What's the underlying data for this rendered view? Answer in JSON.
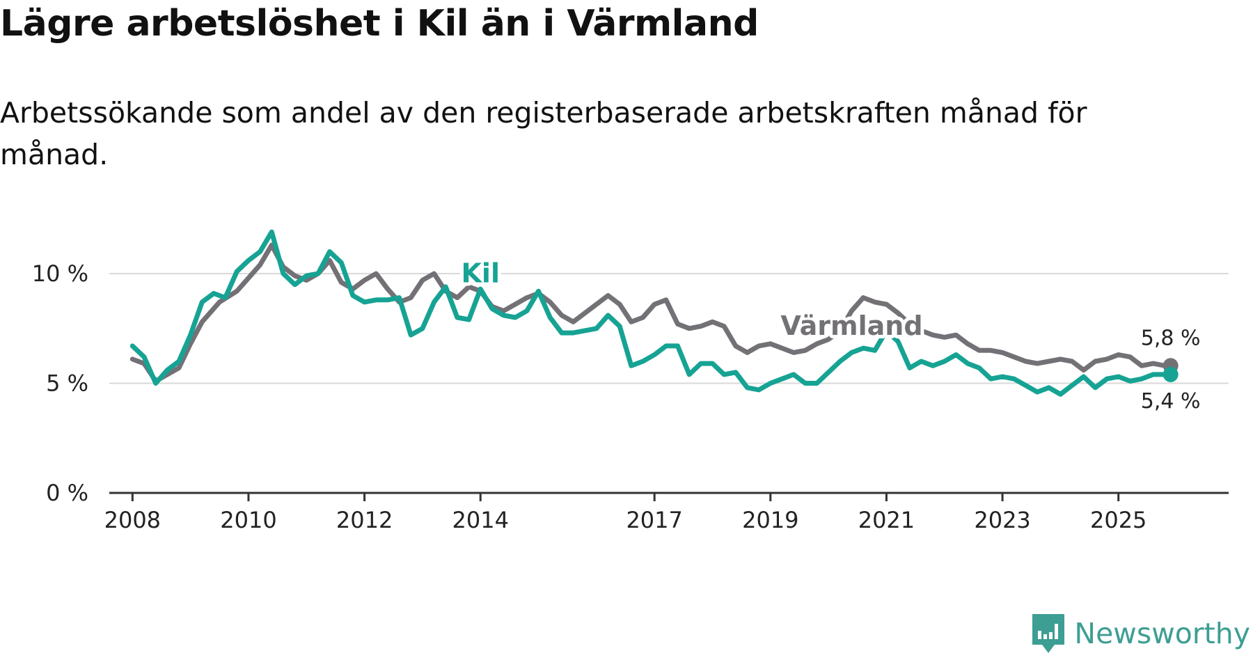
{
  "header": {
    "title": "Lägre arbetslöshet i Kil än i Värmland",
    "subtitle": "Arbetssökande som andel av den registerbaserade arbetskraften månad för månad."
  },
  "brand": {
    "name": "Newsworthy",
    "icon": "newsworthy-logo-icon"
  },
  "colors": {
    "kil": "#16a394",
    "varmland": "#737176",
    "grid": "#d9d9d9",
    "axis": "#333333",
    "brand": "#3d9e93"
  },
  "chart_data": {
    "type": "line",
    "title": "Lägre arbetslöshet i Kil än i Värmland",
    "xlabel": "",
    "ylabel": "",
    "xlim": [
      2007.6,
      2026.9
    ],
    "ylim": [
      0,
      12
    ],
    "yticks": [
      0,
      5,
      10
    ],
    "ytick_labels": [
      "0 %",
      "5 %",
      "10 %"
    ],
    "xticks": [
      2008,
      2010,
      2012,
      2014,
      2017,
      2019,
      2021,
      2023,
      2025
    ],
    "xtick_labels": [
      "2008",
      "2010",
      "2012",
      "2014",
      "2017",
      "2019",
      "2021",
      "2023",
      "2025"
    ],
    "grid": true,
    "series": [
      {
        "name": "Värmland",
        "label": "Värmland",
        "end_label": "5,8 %",
        "color": "#737176",
        "points": [
          [
            2008.0,
            6.1
          ],
          [
            2008.2,
            5.9
          ],
          [
            2008.4,
            5.1
          ],
          [
            2008.6,
            5.4
          ],
          [
            2008.8,
            5.7
          ],
          [
            2009.0,
            6.8
          ],
          [
            2009.2,
            7.8
          ],
          [
            2009.5,
            8.7
          ],
          [
            2009.8,
            9.2
          ],
          [
            2010.0,
            9.8
          ],
          [
            2010.2,
            10.4
          ],
          [
            2010.4,
            11.3
          ],
          [
            2010.6,
            10.3
          ],
          [
            2010.8,
            9.9
          ],
          [
            2011.0,
            9.7
          ],
          [
            2011.2,
            10.0
          ],
          [
            2011.4,
            10.6
          ],
          [
            2011.6,
            9.6
          ],
          [
            2011.8,
            9.3
          ],
          [
            2012.0,
            9.7
          ],
          [
            2012.2,
            10.0
          ],
          [
            2012.4,
            9.3
          ],
          [
            2012.6,
            8.7
          ],
          [
            2012.8,
            8.9
          ],
          [
            2013.0,
            9.7
          ],
          [
            2013.2,
            10.0
          ],
          [
            2013.4,
            9.2
          ],
          [
            2013.6,
            8.9
          ],
          [
            2013.8,
            9.4
          ],
          [
            2014.0,
            9.2
          ],
          [
            2014.2,
            8.5
          ],
          [
            2014.4,
            8.3
          ],
          [
            2014.6,
            8.6
          ],
          [
            2014.8,
            8.9
          ],
          [
            2015.0,
            9.1
          ],
          [
            2015.2,
            8.7
          ],
          [
            2015.4,
            8.1
          ],
          [
            2015.6,
            7.8
          ],
          [
            2015.8,
            8.2
          ],
          [
            2016.0,
            8.6
          ],
          [
            2016.2,
            9.0
          ],
          [
            2016.4,
            8.6
          ],
          [
            2016.6,
            7.8
          ],
          [
            2016.8,
            8.0
          ],
          [
            2017.0,
            8.6
          ],
          [
            2017.2,
            8.8
          ],
          [
            2017.4,
            7.7
          ],
          [
            2017.6,
            7.5
          ],
          [
            2017.8,
            7.6
          ],
          [
            2018.0,
            7.8
          ],
          [
            2018.2,
            7.6
          ],
          [
            2018.4,
            6.7
          ],
          [
            2018.6,
            6.4
          ],
          [
            2018.8,
            6.7
          ],
          [
            2019.0,
            6.8
          ],
          [
            2019.2,
            6.6
          ],
          [
            2019.4,
            6.4
          ],
          [
            2019.6,
            6.5
          ],
          [
            2019.8,
            6.8
          ],
          [
            2020.0,
            7.0
          ],
          [
            2020.2,
            7.4
          ],
          [
            2020.4,
            8.3
          ],
          [
            2020.6,
            8.9
          ],
          [
            2020.8,
            8.7
          ],
          [
            2021.0,
            8.6
          ],
          [
            2021.2,
            8.2
          ],
          [
            2021.4,
            7.7
          ],
          [
            2021.6,
            7.4
          ],
          [
            2021.8,
            7.2
          ],
          [
            2022.0,
            7.1
          ],
          [
            2022.2,
            7.2
          ],
          [
            2022.4,
            6.8
          ],
          [
            2022.6,
            6.5
          ],
          [
            2022.8,
            6.5
          ],
          [
            2023.0,
            6.4
          ],
          [
            2023.2,
            6.2
          ],
          [
            2023.4,
            6.0
          ],
          [
            2023.6,
            5.9
          ],
          [
            2023.8,
            6.0
          ],
          [
            2024.0,
            6.1
          ],
          [
            2024.2,
            6.0
          ],
          [
            2024.4,
            5.6
          ],
          [
            2024.6,
            6.0
          ],
          [
            2024.8,
            6.1
          ],
          [
            2025.0,
            6.3
          ],
          [
            2025.2,
            6.2
          ],
          [
            2025.4,
            5.8
          ],
          [
            2025.6,
            5.9
          ],
          [
            2025.8,
            5.8
          ],
          [
            2025.9,
            5.8
          ]
        ]
      },
      {
        "name": "Kil",
        "label": "Kil",
        "end_label": "5,4 %",
        "color": "#16a394",
        "points": [
          [
            2008.0,
            6.7
          ],
          [
            2008.2,
            6.2
          ],
          [
            2008.4,
            5.0
          ],
          [
            2008.6,
            5.6
          ],
          [
            2008.8,
            6.0
          ],
          [
            2009.0,
            7.2
          ],
          [
            2009.2,
            8.7
          ],
          [
            2009.4,
            9.1
          ],
          [
            2009.6,
            8.9
          ],
          [
            2009.8,
            10.1
          ],
          [
            2010.0,
            10.6
          ],
          [
            2010.2,
            11.0
          ],
          [
            2010.4,
            11.9
          ],
          [
            2010.6,
            10.0
          ],
          [
            2010.8,
            9.5
          ],
          [
            2011.0,
            9.9
          ],
          [
            2011.2,
            10.0
          ],
          [
            2011.4,
            11.0
          ],
          [
            2011.6,
            10.5
          ],
          [
            2011.8,
            9.0
          ],
          [
            2012.0,
            8.7
          ],
          [
            2012.2,
            8.8
          ],
          [
            2012.4,
            8.8
          ],
          [
            2012.6,
            8.9
          ],
          [
            2012.8,
            7.2
          ],
          [
            2013.0,
            7.5
          ],
          [
            2013.2,
            8.7
          ],
          [
            2013.4,
            9.4
          ],
          [
            2013.6,
            8.0
          ],
          [
            2013.8,
            7.9
          ],
          [
            2014.0,
            9.3
          ],
          [
            2014.2,
            8.4
          ],
          [
            2014.4,
            8.1
          ],
          [
            2014.6,
            8.0
          ],
          [
            2014.8,
            8.3
          ],
          [
            2015.0,
            9.2
          ],
          [
            2015.2,
            8.0
          ],
          [
            2015.4,
            7.3
          ],
          [
            2015.6,
            7.3
          ],
          [
            2015.8,
            7.4
          ],
          [
            2016.0,
            7.5
          ],
          [
            2016.2,
            8.1
          ],
          [
            2016.4,
            7.6
          ],
          [
            2016.6,
            5.8
          ],
          [
            2016.8,
            6.0
          ],
          [
            2017.0,
            6.3
          ],
          [
            2017.2,
            6.7
          ],
          [
            2017.4,
            6.7
          ],
          [
            2017.6,
            5.4
          ],
          [
            2017.8,
            5.9
          ],
          [
            2018.0,
            5.9
          ],
          [
            2018.2,
            5.4
          ],
          [
            2018.4,
            5.5
          ],
          [
            2018.6,
            4.8
          ],
          [
            2018.8,
            4.7
          ],
          [
            2019.0,
            5.0
          ],
          [
            2019.2,
            5.2
          ],
          [
            2019.4,
            5.4
          ],
          [
            2019.6,
            5.0
          ],
          [
            2019.8,
            5.0
          ],
          [
            2020.0,
            5.5
          ],
          [
            2020.2,
            6.0
          ],
          [
            2020.4,
            6.4
          ],
          [
            2020.6,
            6.6
          ],
          [
            2020.8,
            6.5
          ],
          [
            2021.0,
            7.4
          ],
          [
            2021.2,
            6.9
          ],
          [
            2021.4,
            5.7
          ],
          [
            2021.6,
            6.0
          ],
          [
            2021.8,
            5.8
          ],
          [
            2022.0,
            6.0
          ],
          [
            2022.2,
            6.3
          ],
          [
            2022.4,
            5.9
          ],
          [
            2022.6,
            5.7
          ],
          [
            2022.8,
            5.2
          ],
          [
            2023.0,
            5.3
          ],
          [
            2023.2,
            5.2
          ],
          [
            2023.4,
            4.9
          ],
          [
            2023.6,
            4.6
          ],
          [
            2023.8,
            4.8
          ],
          [
            2024.0,
            4.5
          ],
          [
            2024.2,
            4.9
          ],
          [
            2024.4,
            5.3
          ],
          [
            2024.6,
            4.8
          ],
          [
            2024.8,
            5.2
          ],
          [
            2025.0,
            5.3
          ],
          [
            2025.2,
            5.1
          ],
          [
            2025.4,
            5.2
          ],
          [
            2025.6,
            5.4
          ],
          [
            2025.8,
            5.4
          ],
          [
            2025.9,
            5.4
          ]
        ]
      }
    ]
  }
}
